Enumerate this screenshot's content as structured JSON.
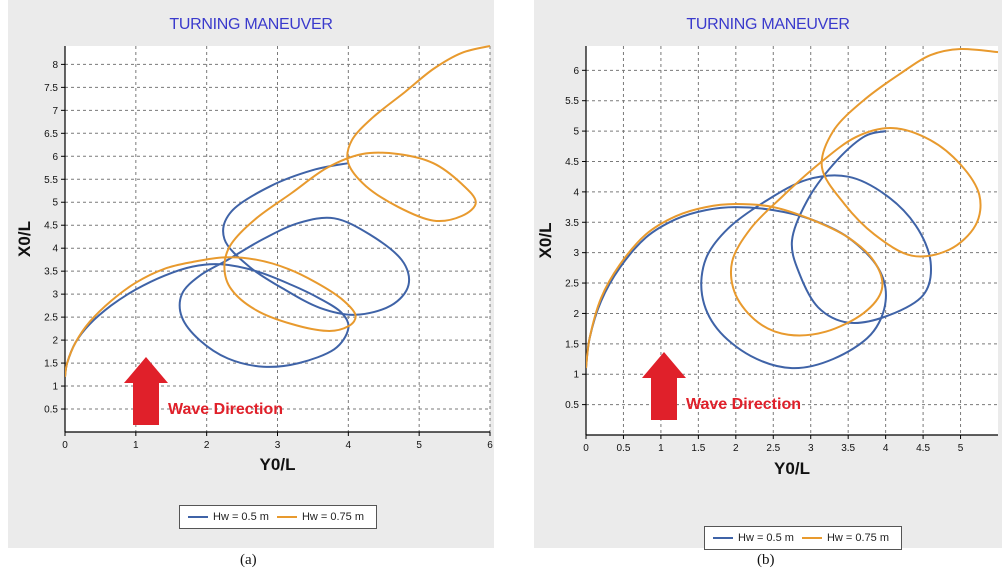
{
  "captions": [
    "(a)",
    "(b)"
  ],
  "colors": {
    "series1": "#3f63a7",
    "series2": "#e89a2e",
    "title": "#3a3acc",
    "annotation": "#e0202a"
  },
  "chart_data": [
    {
      "type": "line",
      "title": "TURNING MANEUVER",
      "xlabel": "Y0/L",
      "ylabel": "X0/L",
      "xlim": [
        0,
        6
      ],
      "ylim": [
        0,
        8.4
      ],
      "xticks": [
        "0",
        "1",
        "2",
        "3",
        "4",
        "5",
        "6"
      ],
      "yticks": [
        "0.5",
        "1",
        "1.5",
        "2",
        "2.5",
        "3",
        "3.5",
        "4",
        "4.5",
        "5",
        "5.5",
        "6",
        "6.5",
        "7",
        "7.5",
        "8"
      ],
      "grid": true,
      "legend_position": "bottom",
      "annotation": "Wave Direction",
      "series": [
        {
          "name": "Hw =  0.5 m",
          "points": [
            [
              0,
              1.2
            ],
            [
              0.03,
              1.5
            ],
            [
              0.15,
              1.95
            ],
            [
              0.35,
              2.35
            ],
            [
              0.65,
              2.75
            ],
            [
              1.0,
              3.1
            ],
            [
              1.4,
              3.4
            ],
            [
              1.8,
              3.6
            ],
            [
              2.2,
              3.65
            ],
            [
              2.7,
              3.5
            ],
            [
              3.2,
              3.2
            ],
            [
              3.6,
              2.9
            ],
            [
              3.9,
              2.6
            ],
            [
              4.0,
              2.25
            ],
            [
              3.8,
              1.8
            ],
            [
              3.3,
              1.5
            ],
            [
              2.8,
              1.42
            ],
            [
              2.3,
              1.6
            ],
            [
              1.9,
              2.0
            ],
            [
              1.65,
              2.5
            ],
            [
              1.65,
              3.0
            ],
            [
              1.9,
              3.4
            ],
            [
              2.3,
              3.75
            ],
            [
              2.8,
              4.2
            ],
            [
              3.3,
              4.55
            ],
            [
              3.8,
              4.65
            ],
            [
              4.3,
              4.3
            ],
            [
              4.75,
              3.75
            ],
            [
              4.85,
              3.2
            ],
            [
              4.6,
              2.75
            ],
            [
              4.1,
              2.55
            ],
            [
              3.6,
              2.7
            ],
            [
              3.1,
              3.1
            ],
            [
              2.6,
              3.6
            ],
            [
              2.25,
              4.2
            ],
            [
              2.35,
              4.8
            ],
            [
              2.9,
              5.35
            ],
            [
              3.5,
              5.7
            ],
            [
              4.0,
              5.85
            ]
          ]
        },
        {
          "name": "Hw =  0.75 m",
          "points": [
            [
              0,
              1.2
            ],
            [
              0.03,
              1.5
            ],
            [
              0.15,
              1.95
            ],
            [
              0.35,
              2.4
            ],
            [
              0.65,
              2.85
            ],
            [
              1.0,
              3.25
            ],
            [
              1.4,
              3.55
            ],
            [
              1.8,
              3.7
            ],
            [
              2.25,
              3.8
            ],
            [
              2.7,
              3.75
            ],
            [
              3.15,
              3.55
            ],
            [
              3.55,
              3.25
            ],
            [
              3.9,
              2.9
            ],
            [
              4.1,
              2.55
            ],
            [
              4.0,
              2.3
            ],
            [
              3.7,
              2.2
            ],
            [
              3.2,
              2.35
            ],
            [
              2.7,
              2.65
            ],
            [
              2.35,
              3.1
            ],
            [
              2.25,
              3.6
            ],
            [
              2.35,
              4.1
            ],
            [
              2.7,
              4.65
            ],
            [
              3.2,
              5.2
            ],
            [
              3.7,
              5.75
            ],
            [
              4.2,
              6.05
            ],
            [
              4.7,
              6.05
            ],
            [
              5.2,
              5.85
            ],
            [
              5.6,
              5.4
            ],
            [
              5.8,
              5.0
            ],
            [
              5.6,
              4.7
            ],
            [
              5.2,
              4.6
            ],
            [
              4.7,
              4.9
            ],
            [
              4.25,
              5.35
            ],
            [
              4.0,
              5.85
            ],
            [
              4.05,
              6.35
            ],
            [
              4.35,
              6.85
            ],
            [
              4.8,
              7.4
            ],
            [
              5.2,
              7.9
            ],
            [
              5.6,
              8.25
            ],
            [
              6.0,
              8.4
            ]
          ]
        }
      ]
    },
    {
      "type": "line",
      "title": "TURNING MANEUVER",
      "xlabel": "Y0/L",
      "ylabel": "X0/L",
      "xlim": [
        0,
        5.5
      ],
      "ylim": [
        0,
        6.4
      ],
      "xticks": [
        "0",
        "0.5",
        "1",
        "1.5",
        "2",
        "2.5",
        "3",
        "3.5",
        "4",
        "4.5",
        "5"
      ],
      "yticks": [
        "0.5",
        "1",
        "1.5",
        "2",
        "2.5",
        "3",
        "3.5",
        "4",
        "4.5",
        "5",
        "5.5",
        "6"
      ],
      "grid": true,
      "legend_position": "bottom",
      "annotation": "Wave Direction",
      "series": [
        {
          "name": "Hw =  0.5 m",
          "points": [
            [
              0,
              1.1
            ],
            [
              0.05,
              1.6
            ],
            [
              0.2,
              2.2
            ],
            [
              0.45,
              2.75
            ],
            [
              0.8,
              3.25
            ],
            [
              1.2,
              3.55
            ],
            [
              1.6,
              3.7
            ],
            [
              2.0,
              3.75
            ],
            [
              2.5,
              3.7
            ],
            [
              3.0,
              3.55
            ],
            [
              3.5,
              3.25
            ],
            [
              3.9,
              2.75
            ],
            [
              4.0,
              2.2
            ],
            [
              3.8,
              1.65
            ],
            [
              3.3,
              1.25
            ],
            [
              2.75,
              1.1
            ],
            [
              2.2,
              1.3
            ],
            [
              1.75,
              1.75
            ],
            [
              1.55,
              2.3
            ],
            [
              1.6,
              2.9
            ],
            [
              1.9,
              3.4
            ],
            [
              2.4,
              3.85
            ],
            [
              2.95,
              4.2
            ],
            [
              3.5,
              4.25
            ],
            [
              4.0,
              3.95
            ],
            [
              4.4,
              3.45
            ],
            [
              4.6,
              2.85
            ],
            [
              4.5,
              2.3
            ],
            [
              4.0,
              1.95
            ],
            [
              3.5,
              1.85
            ],
            [
              3.1,
              2.1
            ],
            [
              2.85,
              2.65
            ],
            [
              2.75,
              3.2
            ],
            [
              2.95,
              3.85
            ],
            [
              3.3,
              4.45
            ],
            [
              3.7,
              4.9
            ],
            [
              4.0,
              5.0
            ]
          ]
        },
        {
          "name": "Hw =  0.75 m",
          "points": [
            [
              0,
              1.1
            ],
            [
              0.05,
              1.6
            ],
            [
              0.2,
              2.25
            ],
            [
              0.45,
              2.8
            ],
            [
              0.8,
              3.3
            ],
            [
              1.2,
              3.6
            ],
            [
              1.6,
              3.75
            ],
            [
              2.0,
              3.8
            ],
            [
              2.5,
              3.75
            ],
            [
              3.0,
              3.55
            ],
            [
              3.5,
              3.25
            ],
            [
              3.85,
              2.85
            ],
            [
              3.95,
              2.4
            ],
            [
              3.7,
              2.0
            ],
            [
              3.2,
              1.7
            ],
            [
              2.7,
              1.65
            ],
            [
              2.3,
              1.85
            ],
            [
              2.0,
              2.3
            ],
            [
              1.95,
              2.85
            ],
            [
              2.2,
              3.4
            ],
            [
              2.6,
              3.9
            ],
            [
              3.1,
              4.45
            ],
            [
              3.6,
              4.9
            ],
            [
              4.1,
              5.05
            ],
            [
              4.6,
              4.85
            ],
            [
              5.0,
              4.45
            ],
            [
              5.25,
              3.95
            ],
            [
              5.2,
              3.45
            ],
            [
              4.85,
              3.05
            ],
            [
              4.35,
              2.95
            ],
            [
              3.85,
              3.3
            ],
            [
              3.45,
              3.8
            ],
            [
              3.15,
              4.4
            ],
            [
              3.3,
              5.0
            ],
            [
              3.7,
              5.5
            ],
            [
              4.2,
              5.95
            ],
            [
              4.6,
              6.25
            ],
            [
              5.0,
              6.35
            ],
            [
              5.5,
              6.3
            ]
          ]
        }
      ]
    }
  ]
}
